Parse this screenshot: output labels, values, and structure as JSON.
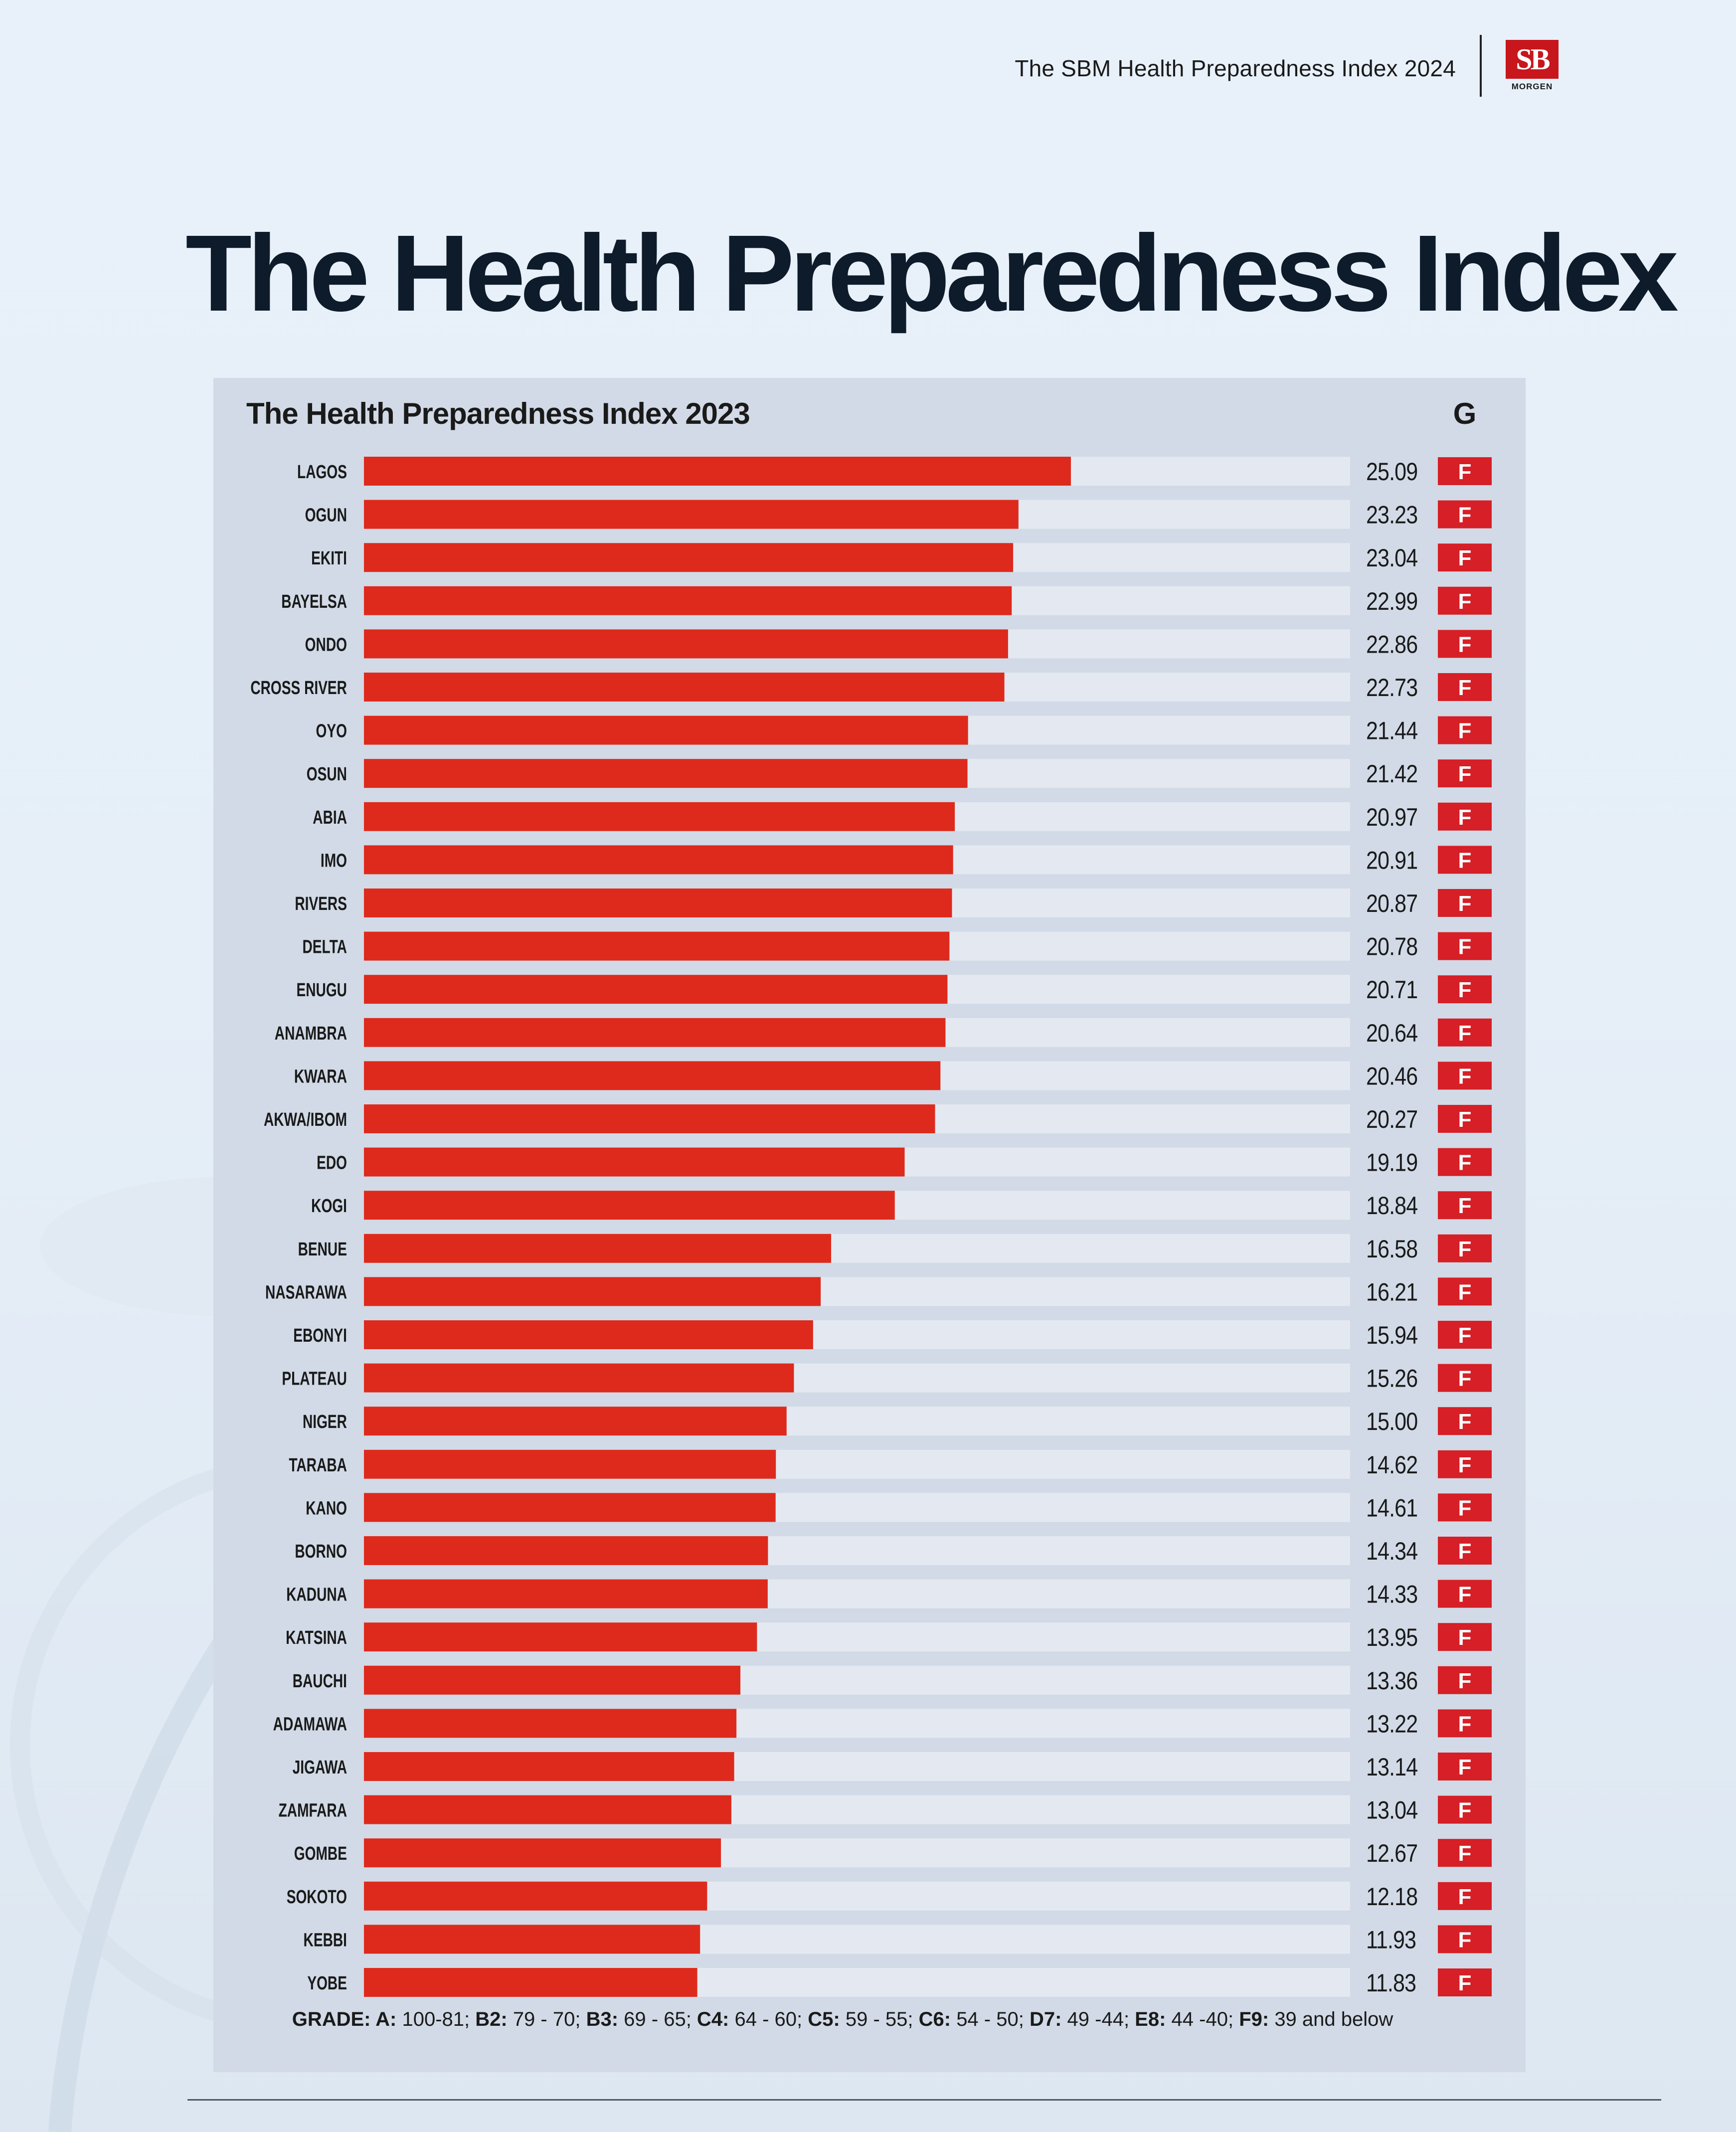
{
  "header": {
    "title": "The SBM Health Preparedness Index 2024",
    "logo_text": "SB",
    "logo_subtext": "MORGEN"
  },
  "page_title": "The Health Preparedness Index",
  "colors": {
    "bar": "#de2a1c",
    "track": "#e4e9f1",
    "grade_badge": "#d61f26",
    "panel": "#d1dae6",
    "text": "#1a1a1a"
  },
  "chart_data": {
    "type": "bar",
    "orientation": "horizontal",
    "title": "The Health Preparedness Index 2023",
    "grade_header": "G",
    "xlim": [
      0,
      35
    ],
    "categories": [
      "LAGOS",
      "OGUN",
      "EKITI",
      "BAYELSA",
      "ONDO",
      "CROSS RIVER",
      "OYO",
      "OSUN",
      "ABIA",
      "IMO",
      "RIVERS",
      "DELTA",
      "ENUGU",
      "ANAMBRA",
      "KWARA",
      "AKWA/IBOM",
      "EDO",
      "KOGI",
      "BENUE",
      "NASARAWA",
      "EBONYI",
      "PLATEAU",
      "NIGER",
      "TARABA",
      "KANO",
      "BORNO",
      "KADUNA",
      "KATSINA",
      "BAUCHI",
      "ADAMAWA",
      "JIGAWA",
      "ZAMFARA",
      "GOMBE",
      "SOKOTO",
      "KEBBI",
      "YOBE"
    ],
    "values": [
      25.09,
      23.23,
      23.04,
      22.99,
      22.86,
      22.73,
      21.44,
      21.42,
      20.97,
      20.91,
      20.87,
      20.78,
      20.71,
      20.64,
      20.46,
      20.27,
      19.19,
      18.84,
      16.58,
      16.21,
      15.94,
      15.26,
      15.0,
      14.62,
      14.61,
      14.34,
      14.33,
      13.95,
      13.36,
      13.22,
      13.14,
      13.04,
      12.67,
      12.18,
      11.93,
      11.83
    ],
    "value_labels": [
      "25.09",
      "23.23",
      "23.04",
      "22.99",
      "22.86",
      "22.73",
      "21.44",
      "21.42",
      "20.97",
      "20.91",
      "20.87",
      "20.78",
      "20.71",
      "20.64",
      "20.46",
      "20.27",
      "19.19",
      "18.84",
      "16.58",
      "16.21",
      "15.94",
      "15.26",
      "15.00",
      "14.62",
      "14.61",
      "14.34",
      "14.33",
      "13.95",
      "13.36",
      "13.22",
      "13.14",
      "13.04",
      "12.67",
      "12.18",
      "11.93",
      "11.83"
    ],
    "grades": [
      "F",
      "F",
      "F",
      "F",
      "F",
      "F",
      "F",
      "F",
      "F",
      "F",
      "F",
      "F",
      "F",
      "F",
      "F",
      "F",
      "F",
      "F",
      "F",
      "F",
      "F",
      "F",
      "F",
      "F",
      "F",
      "F",
      "F",
      "F",
      "F",
      "F",
      "F",
      "F",
      "F",
      "F",
      "F",
      "F"
    ],
    "grade_legend": [
      {
        "label": "GRADE: A:",
        "range": "100-81;"
      },
      {
        "label": "B2:",
        "range": "79 - 70;"
      },
      {
        "label": "B3:",
        "range": "69 - 65;"
      },
      {
        "label": "C4:",
        "range": "64 - 60;"
      },
      {
        "label": "C5:",
        "range": "59 - 55;"
      },
      {
        "label": "C6:",
        "range": "54 - 50;"
      },
      {
        "label": "D7:",
        "range": "49 -44;"
      },
      {
        "label": "E8:",
        "range": "44 -40;"
      },
      {
        "label": "F9:",
        "range": "39 and below"
      }
    ]
  }
}
